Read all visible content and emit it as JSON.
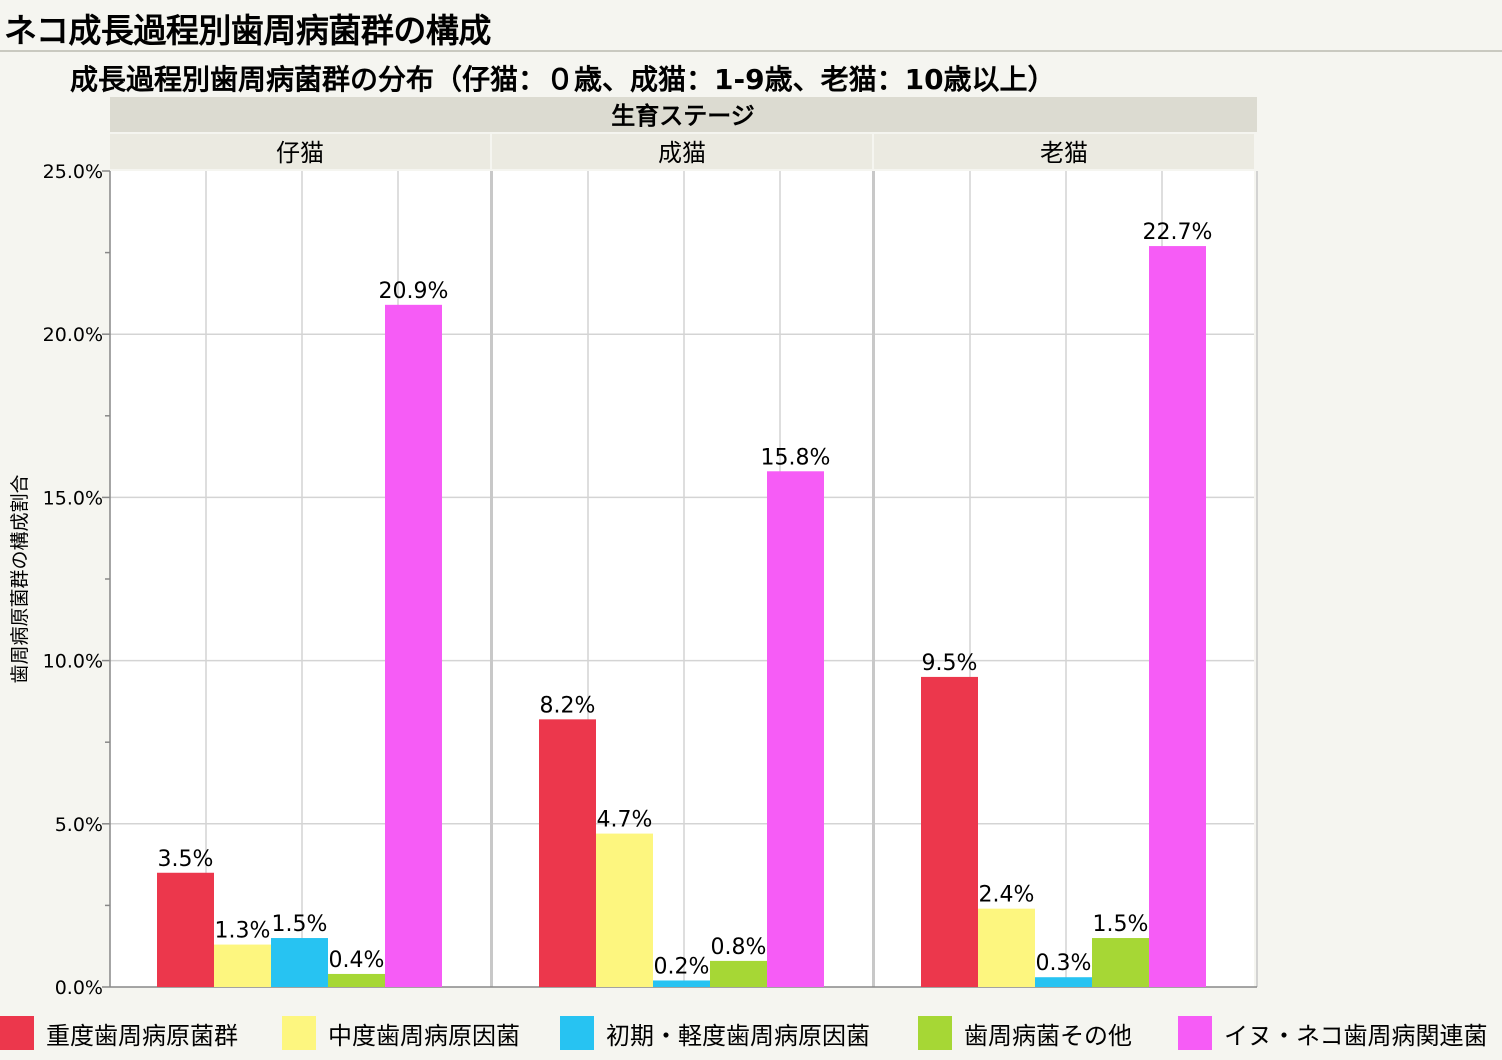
{
  "window": {
    "title": "ネコ成長過程別歯周病菌群の構成"
  },
  "chart_data": {
    "type": "bar",
    "title": "成長過程別歯周病菌群の分布（仔猫：０歳、成猫：1-9歳、老猫：10歳以上）",
    "group_header": "生育ステージ",
    "panels": [
      "仔猫",
      "成猫",
      "老猫"
    ],
    "ylabel": "歯周病原菌群の構成割合",
    "ylim": [
      0,
      25
    ],
    "y_ticks": [
      "0.0%",
      "5.0%",
      "10.0%",
      "15.0%",
      "20.0%",
      "25.0%"
    ],
    "series": [
      {
        "name": "重度歯周病原菌群",
        "color": "#ec374c",
        "values": [
          3.5,
          8.2,
          9.5
        ],
        "labels": [
          "3.5%",
          "8.2%",
          "9.5%"
        ]
      },
      {
        "name": "中度歯周病原因菌",
        "color": "#fdf67f",
        "values": [
          1.3,
          4.7,
          2.4
        ],
        "labels": [
          "1.3%",
          "4.7%",
          "2.4%"
        ]
      },
      {
        "name": "初期・軽度歯周病原因菌",
        "color": "#27c3f2",
        "values": [
          1.5,
          0.2,
          0.3
        ],
        "labels": [
          "1.5%",
          "0.2%",
          "0.3%"
        ]
      },
      {
        "name": "歯周病菌その他",
        "color": "#a6d735",
        "values": [
          0.4,
          0.8,
          1.5
        ],
        "labels": [
          "0.4%",
          "0.8%",
          "1.5%"
        ]
      },
      {
        "name": "イヌ・ネコ歯周病関連菌",
        "color": "#f65cf6",
        "values": [
          20.9,
          15.8,
          22.7
        ],
        "labels": [
          "20.9%",
          "15.8%",
          "22.7%"
        ]
      }
    ],
    "grid": true,
    "legend_position": "bottom"
  }
}
